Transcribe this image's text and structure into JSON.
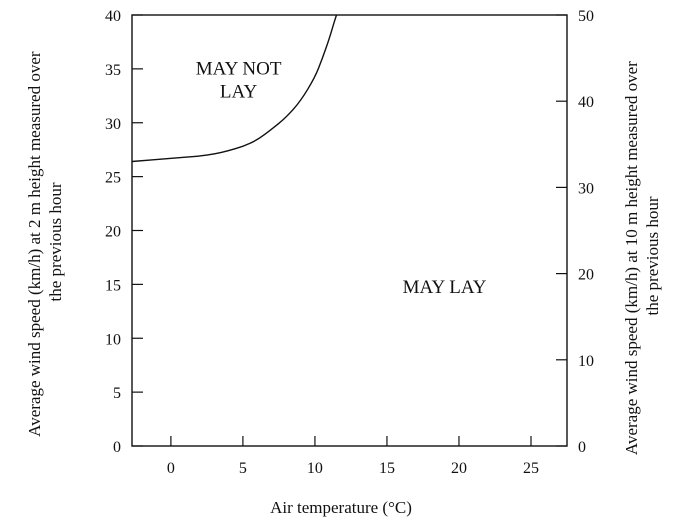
{
  "chart_data": {
    "type": "line",
    "title": "",
    "xlabel": "Air temperature (°C)",
    "ylabel_left": "Average wind speed (km/h) at 2 m height measured over the previous hour",
    "ylabel_right": "Average wind speed (km/h) at 10 m height measured over the previous hour",
    "xlim": [
      -2.7,
      27.5
    ],
    "ylim_left": [
      0,
      40
    ],
    "ylim_right": [
      0,
      50
    ],
    "x_ticks": [
      0,
      5,
      10,
      15,
      20,
      25
    ],
    "y_left_ticks": [
      0,
      5,
      10,
      15,
      20,
      25,
      30,
      35,
      40
    ],
    "y_right_ticks": [
      0,
      10,
      20,
      30,
      40,
      50
    ],
    "grid": false,
    "series": [
      {
        "x": [
          -2.7,
          0,
          2,
          3,
          4,
          5,
          6,
          7,
          8,
          9,
          10,
          10.5,
          11,
          11.3,
          11.5
        ],
        "y": [
          26.4,
          26.7,
          26.9,
          27.1,
          27.4,
          27.8,
          28.4,
          29.4,
          30.5,
          32.0,
          34.2,
          35.9,
          37.8,
          39.2,
          40.0
        ]
      }
    ],
    "annotations": [
      {
        "text": "MAY NOT\nLAY",
        "x": 4.7,
        "y": 34.5
      },
      {
        "text": "MAY LAY",
        "x": 19.0,
        "y": 14.2
      }
    ]
  }
}
